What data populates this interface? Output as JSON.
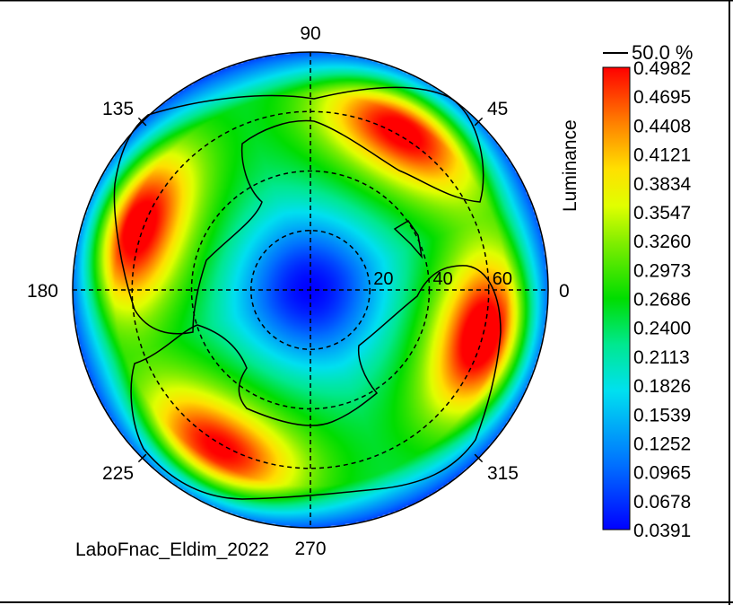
{
  "chart_data": {
    "type": "heatmap",
    "subtype": "polar-conoscopic",
    "quantity_label": "Luminance",
    "contour_label": "50.0 %",
    "angle_ticks": [
      "0",
      "45",
      "90",
      "135",
      "180",
      "225",
      "270",
      "315"
    ],
    "radial_ticks": [
      "20",
      "40",
      "60"
    ],
    "radial_max": 80,
    "colorbar_ticks": [
      "0.4982",
      "0.4695",
      "0.4408",
      "0.4121",
      "0.3834",
      "0.3547",
      "0.3260",
      "0.2973",
      "0.2686",
      "0.2400",
      "0.2113",
      "0.1826",
      "0.1539",
      "0.1252",
      "0.0965",
      "0.0678",
      "0.0391"
    ],
    "value_range": [
      0.0391,
      0.4982
    ],
    "hot_spots": [
      {
        "azimuth_deg": 60,
        "inclination_deg": 62,
        "value": 0.47
      },
      {
        "azimuth_deg": 160,
        "inclination_deg": 62,
        "value": 0.48
      },
      {
        "azimuth_deg": 240,
        "inclination_deg": 62,
        "value": 0.46
      },
      {
        "azimuth_deg": 345,
        "inclination_deg": 60,
        "value": 0.49
      }
    ],
    "center_value": 0.04,
    "footer_text": "LaboFnac_Eldim_2022",
    "grid": true,
    "legend_position": "right"
  }
}
